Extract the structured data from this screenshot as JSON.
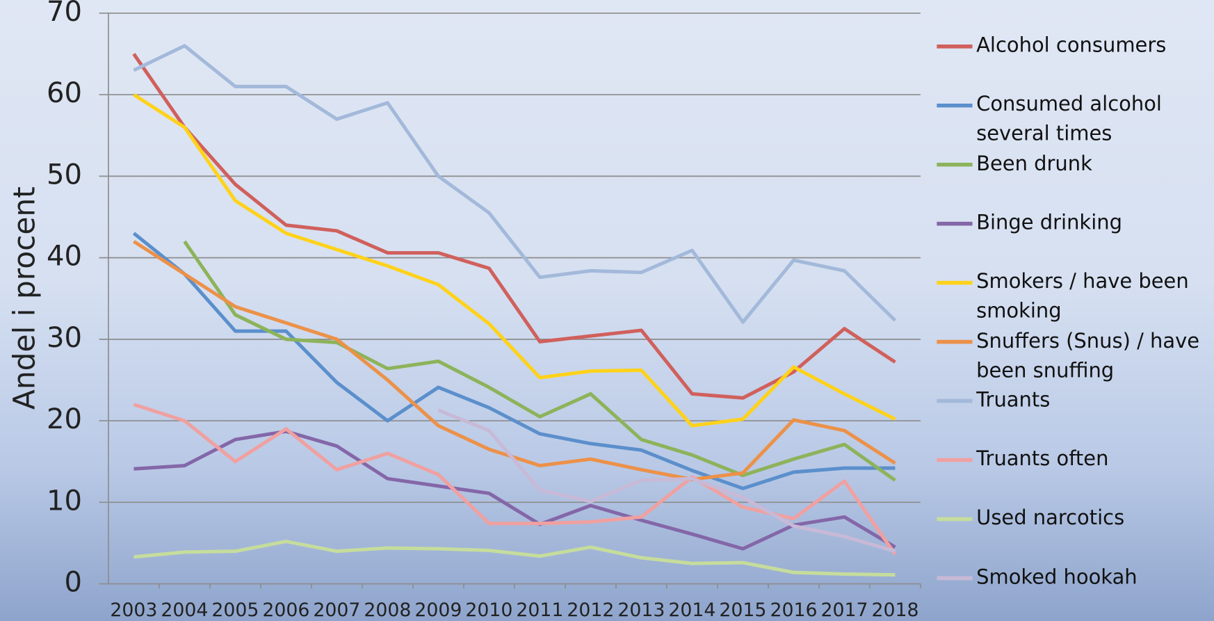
{
  "chart_data": {
    "type": "line",
    "y_label": "Andel i procent",
    "categories": [
      "2003",
      "2004",
      "2005",
      "2006",
      "2007",
      "2008",
      "2009",
      "2010",
      "2011",
      "2012",
      "2013",
      "2014",
      "2015",
      "2016",
      "2017",
      "2018"
    ],
    "ylim": [
      0,
      70
    ],
    "yticks": [
      0,
      10,
      20,
      30,
      40,
      50,
      60,
      70
    ],
    "grid": true,
    "legend": "right",
    "series": [
      {
        "name": "Alcohol consumers",
        "color": "#d0605c",
        "values": [
          65,
          56,
          49,
          44,
          43.3,
          40.6,
          40.6,
          38.7,
          29.7,
          30.4,
          31.1,
          23.3,
          22.8,
          26,
          31.3,
          27.2
        ]
      },
      {
        "name": "Consumed alcohol several times",
        "color": "#5b8fcc",
        "values": [
          43,
          38,
          31,
          31,
          24.7,
          20,
          24.1,
          21.6,
          18.4,
          17.2,
          16.4,
          13.9,
          11.7,
          13.7,
          14.2,
          14.2
        ]
      },
      {
        "name": "Been drunk",
        "color": "#8db35a",
        "values": [
          null,
          42,
          33,
          30,
          29.6,
          26.4,
          27.3,
          24.1,
          20.5,
          23.3,
          17.7,
          15.8,
          13.3,
          15.3,
          17.1,
          12.7
        ]
      },
      {
        "name": "Binge drinking",
        "color": "#8467a8",
        "values": [
          14.1,
          14.5,
          17.7,
          18.7,
          16.9,
          12.9,
          12,
          11.1,
          7.3,
          9.6,
          7.8,
          6.1,
          4.3,
          7.2,
          8.2,
          4.5
        ]
      },
      {
        "name": "Smokers / have been smoking",
        "color": "#ffd21a",
        "values": [
          60,
          56,
          47,
          43,
          41,
          39,
          36.7,
          31.9,
          25.3,
          26.1,
          26.2,
          19.4,
          20.2,
          26.6,
          23.3,
          20.2
        ]
      },
      {
        "name": "Snuffers (Snus) / have been snuffing",
        "color": "#ec9148",
        "values": [
          42,
          38,
          34,
          32,
          30,
          25,
          19.4,
          16.5,
          14.5,
          15.3,
          14,
          12.8,
          13.6,
          20.1,
          18.8,
          14.8
        ]
      },
      {
        "name": "Truants",
        "color": "#a3b9da",
        "values": [
          63,
          66,
          61,
          61,
          57,
          59,
          50,
          45.5,
          37.6,
          38.4,
          38.2,
          40.9,
          32.1,
          39.7,
          38.4,
          32.3
        ]
      },
      {
        "name": "Truants often",
        "color": "#f0a0a0",
        "values": [
          22,
          20,
          15,
          19,
          14,
          16,
          13.4,
          7.4,
          7.4,
          7.6,
          8.2,
          13.1,
          9.4,
          8,
          12.6,
          3.6
        ]
      },
      {
        "name": "Used narcotics",
        "color": "#c6dc9c",
        "values": [
          3.3,
          3.9,
          4,
          5.2,
          4,
          4.4,
          4.3,
          4.1,
          3.4,
          4.5,
          3.2,
          2.5,
          2.6,
          1.4,
          1.2,
          1.1
        ]
      },
      {
        "name": "Smoked hookah",
        "color": "#c8b9d6",
        "values": [
          null,
          null,
          null,
          null,
          null,
          null,
          21.3,
          18.8,
          11.5,
          10.1,
          12.7,
          12.9,
          10.6,
          7.1,
          5.8,
          4
        ]
      }
    ]
  }
}
